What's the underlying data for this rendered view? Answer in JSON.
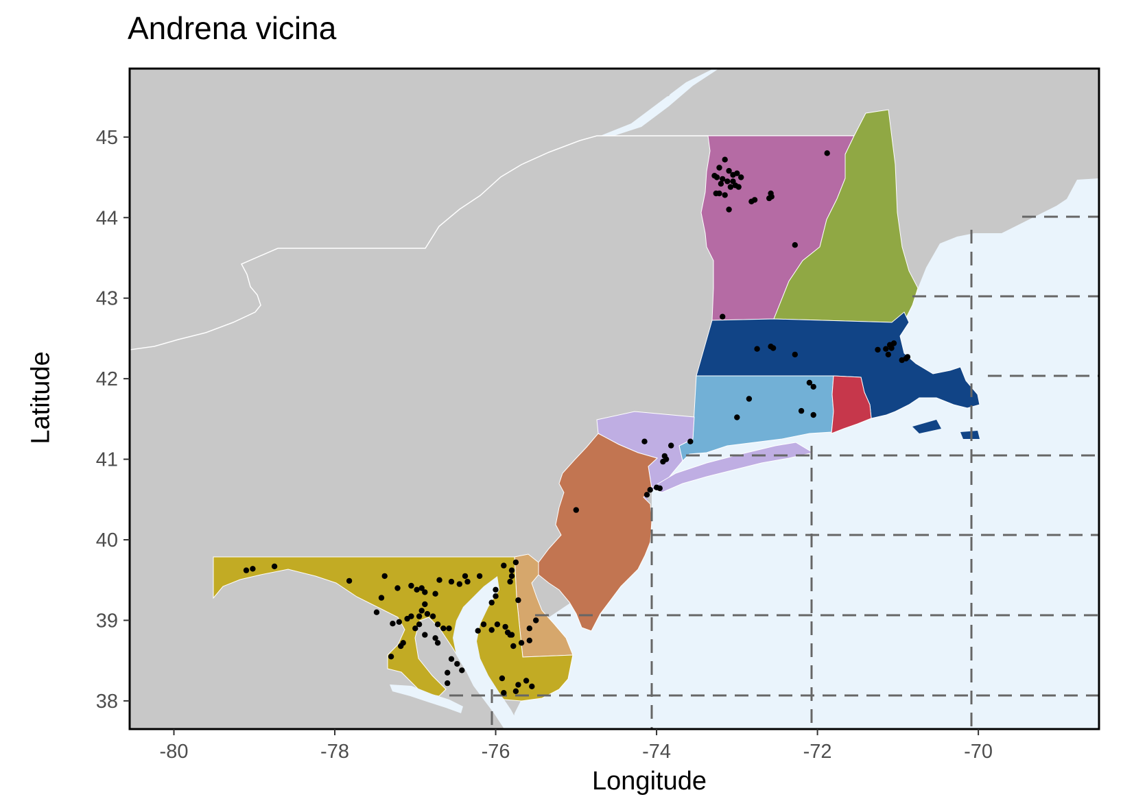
{
  "title": "Andrena vicina",
  "xlabel": "Longitude",
  "ylabel": "Latitude",
  "xlim": [
    -80.55,
    -68.5
  ],
  "ylim": [
    37.65,
    45.85
  ],
  "x_ticks": [
    -80,
    -78,
    -76,
    -74,
    -72,
    -70
  ],
  "y_ticks": [
    38,
    39,
    40,
    41,
    42,
    43,
    44,
    45
  ],
  "colors": {
    "land": "#c8c8c8",
    "ocean": "#eaf4fc",
    "border": "#ffffff",
    "grid": "#666666",
    "point": "#000000",
    "frame": "#000000"
  },
  "states": [
    {
      "name": "VT",
      "color": "#b56ba4"
    },
    {
      "name": "NH",
      "color": "#90a844"
    },
    {
      "name": "MA",
      "color": "#114486"
    },
    {
      "name": "CT",
      "color": "#72b0d6"
    },
    {
      "name": "RI",
      "color": "#c6374b"
    },
    {
      "name": "NY",
      "color": "#bfaee3"
    },
    {
      "name": "NJ",
      "color": "#c27551"
    },
    {
      "name": "DE",
      "color": "#d6a76c"
    },
    {
      "name": "MD",
      "color": "#c2ab24"
    }
  ],
  "occurrences": [
    [
      -73.15,
      44.72
    ],
    [
      -73.22,
      44.62
    ],
    [
      -73.1,
      44.58
    ],
    [
      -73.05,
      44.53
    ],
    [
      -73.25,
      44.5
    ],
    [
      -73.18,
      44.48
    ],
    [
      -73.12,
      44.45
    ],
    [
      -73.0,
      44.55
    ],
    [
      -72.95,
      44.5
    ],
    [
      -73.28,
      44.52
    ],
    [
      -73.2,
      44.42
    ],
    [
      -73.08,
      44.38
    ],
    [
      -73.02,
      44.4
    ],
    [
      -72.98,
      44.38
    ],
    [
      -73.26,
      44.3
    ],
    [
      -73.22,
      44.3
    ],
    [
      -73.15,
      44.28
    ],
    [
      -73.05,
      44.45
    ],
    [
      -72.82,
      44.2
    ],
    [
      -72.78,
      44.22
    ],
    [
      -72.58,
      44.3
    ],
    [
      -72.57,
      44.26
    ],
    [
      -72.6,
      44.24
    ],
    [
      -73.1,
      44.1
    ],
    [
      -72.28,
      43.66
    ],
    [
      -71.88,
      44.8
    ],
    [
      -73.18,
      42.77
    ],
    [
      -72.75,
      42.37
    ],
    [
      -72.58,
      42.4
    ],
    [
      -72.55,
      42.38
    ],
    [
      -72.28,
      42.3
    ],
    [
      -71.25,
      42.36
    ],
    [
      -71.15,
      42.37
    ],
    [
      -71.1,
      42.42
    ],
    [
      -71.05,
      42.44
    ],
    [
      -71.08,
      42.38
    ],
    [
      -71.12,
      42.3
    ],
    [
      -70.95,
      42.23
    ],
    [
      -70.9,
      42.25
    ],
    [
      -70.88,
      42.27
    ],
    [
      -72.1,
      41.95
    ],
    [
      -72.05,
      41.9
    ],
    [
      -72.85,
      41.75
    ],
    [
      -72.2,
      41.6
    ],
    [
      -72.05,
      41.55
    ],
    [
      -73.0,
      41.52
    ],
    [
      -74.15,
      41.22
    ],
    [
      -73.82,
      41.17
    ],
    [
      -73.58,
      41.22
    ],
    [
      -73.9,
      41.04
    ],
    [
      -73.88,
      41.0
    ],
    [
      -73.92,
      40.97
    ],
    [
      -74.08,
      40.62
    ],
    [
      -74.12,
      40.56
    ],
    [
      -74.0,
      40.65
    ],
    [
      -73.96,
      40.64
    ],
    [
      -75.0,
      40.37
    ],
    [
      -79.1,
      39.62
    ],
    [
      -79.02,
      39.64
    ],
    [
      -78.75,
      39.67
    ],
    [
      -77.82,
      39.49
    ],
    [
      -77.38,
      39.55
    ],
    [
      -77.22,
      39.4
    ],
    [
      -77.42,
      39.28
    ],
    [
      -76.98,
      39.38
    ],
    [
      -76.92,
      39.4
    ],
    [
      -76.88,
      39.35
    ],
    [
      -77.05,
      39.43
    ],
    [
      -76.7,
      39.5
    ],
    [
      -76.75,
      39.33
    ],
    [
      -76.55,
      39.48
    ],
    [
      -76.38,
      39.55
    ],
    [
      -76.45,
      39.45
    ],
    [
      -76.35,
      39.48
    ],
    [
      -76.2,
      39.55
    ],
    [
      -75.9,
      39.68
    ],
    [
      -75.75,
      39.72
    ],
    [
      -75.8,
      39.62
    ],
    [
      -75.8,
      39.55
    ],
    [
      -75.82,
      39.48
    ],
    [
      -76.0,
      39.38
    ],
    [
      -76.0,
      39.3
    ],
    [
      -76.05,
      39.22
    ],
    [
      -75.72,
      39.25
    ],
    [
      -77.48,
      39.1
    ],
    [
      -77.2,
      38.98
    ],
    [
      -77.28,
      38.96
    ],
    [
      -77.1,
      39.02
    ],
    [
      -77.05,
      39.05
    ],
    [
      -76.95,
      39.05
    ],
    [
      -76.92,
      39.12
    ],
    [
      -76.88,
      39.2
    ],
    [
      -76.85,
      39.08
    ],
    [
      -76.78,
      39.05
    ],
    [
      -76.72,
      38.95
    ],
    [
      -76.65,
      38.9
    ],
    [
      -76.58,
      38.9
    ],
    [
      -76.95,
      38.95
    ],
    [
      -77.0,
      38.9
    ],
    [
      -76.88,
      38.82
    ],
    [
      -76.75,
      38.78
    ],
    [
      -76.72,
      38.72
    ],
    [
      -77.15,
      38.72
    ],
    [
      -77.18,
      38.68
    ],
    [
      -77.3,
      38.55
    ],
    [
      -76.55,
      38.52
    ],
    [
      -76.48,
      38.46
    ],
    [
      -76.42,
      38.38
    ],
    [
      -76.6,
      38.35
    ],
    [
      -76.6,
      38.22
    ],
    [
      -76.15,
      38.95
    ],
    [
      -76.22,
      38.87
    ],
    [
      -76.05,
      38.88
    ],
    [
      -75.98,
      38.95
    ],
    [
      -75.88,
      38.92
    ],
    [
      -75.85,
      38.85
    ],
    [
      -75.8,
      38.82
    ],
    [
      -75.78,
      38.68
    ],
    [
      -75.68,
      38.72
    ],
    [
      -75.58,
      38.75
    ],
    [
      -75.5,
      39.0
    ],
    [
      -75.82,
      38.82
    ],
    [
      -75.58,
      38.9
    ],
    [
      -75.72,
      38.2
    ],
    [
      -75.62,
      38.25
    ],
    [
      -75.55,
      38.18
    ],
    [
      -75.75,
      38.12
    ],
    [
      -75.92,
      38.28
    ],
    [
      -75.9,
      38.1
    ]
  ]
}
